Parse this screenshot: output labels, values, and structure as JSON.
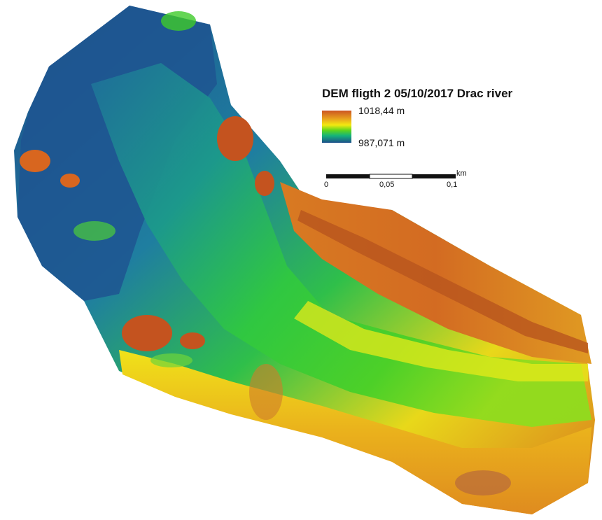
{
  "map": {
    "title": "DEM fligth 2 05/10/2017 Drac river",
    "legend": {
      "max_label": "1018,44 m",
      "min_label": "987,071 m",
      "ramp_colors": [
        "#cc5522",
        "#e8a01e",
        "#f2ea10",
        "#5ad41e",
        "#15b37a",
        "#1a6b9a",
        "#1d4f8a"
      ]
    },
    "scalebar": {
      "labels": [
        "0",
        "0,05",
        "0,1"
      ],
      "unit": "km"
    },
    "colors": {
      "low": "#1d4f8a",
      "mid": "#3fcb2a",
      "high_yellow": "#f2e41a",
      "high": "#cc5522"
    }
  }
}
